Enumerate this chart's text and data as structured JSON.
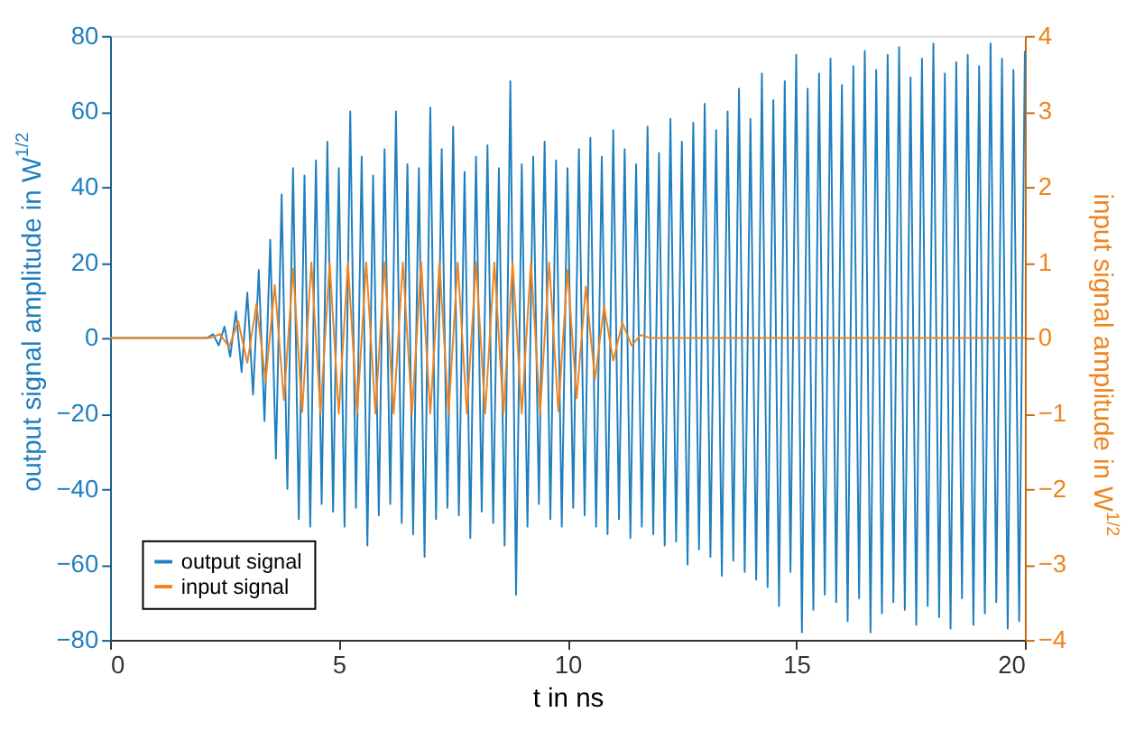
{
  "chart_data": {
    "type": "line",
    "xlabel": "t in ns",
    "ylabel": "output signal amplitude in W$^{1/2}$",
    "y2label": "input signal amplitude in W$^{1/2}$",
    "xlim": [
      0,
      20
    ],
    "xticks": [
      0,
      5,
      10,
      15,
      20
    ],
    "ylim": [
      -80,
      80
    ],
    "yticks": [
      -80,
      -60,
      -40,
      -20,
      0,
      20,
      40,
      60,
      80
    ],
    "y2lim": [
      -4,
      4
    ],
    "y2ticks": [
      -4,
      -3,
      -2,
      -1,
      0,
      1,
      2,
      3,
      4
    ],
    "grid": false,
    "legend": "bottom left",
    "marker": "none",
    "line_style": "solid",
    "series": [
      {
        "name": "output signal",
        "color": "#1f7fbf",
        "x": [
          0,
          2,
          2.125,
          2.25,
          2.375,
          2.5,
          2.625,
          2.75,
          2.875,
          3,
          3.125,
          3.25,
          3.375,
          3.5,
          3.625,
          3.75,
          3.875,
          4,
          4.125,
          4.25,
          4.375,
          4.5,
          4.625,
          4.75,
          4.875,
          5,
          5.125,
          5.25,
          5.375,
          5.5,
          5.625,
          5.75,
          5.875,
          6,
          6.125,
          6.25,
          6.375,
          6.5,
          6.625,
          6.75,
          6.875,
          7,
          7.125,
          7.25,
          7.375,
          7.5,
          7.625,
          7.75,
          7.875,
          8,
          8.125,
          8.25,
          8.375,
          8.5,
          8.625,
          8.75,
          8.875,
          9,
          9.125,
          9.25,
          9.375,
          9.5,
          9.625,
          9.75,
          9.875,
          10,
          10.125,
          10.25,
          10.375,
          10.5,
          10.625,
          10.75,
          10.875,
          11,
          11.125,
          11.25,
          11.375,
          11.5,
          11.625,
          11.75,
          11.875,
          12,
          12.125,
          12.25,
          12.375,
          12.5,
          12.625,
          12.75,
          12.875,
          13,
          13.125,
          13.25,
          13.375,
          13.5,
          13.625,
          13.75,
          13.875,
          14,
          14.125,
          14.25,
          14.375,
          14.5,
          14.625,
          14.75,
          14.875,
          15,
          15.125,
          15.25,
          15.375,
          15.5,
          15.625,
          15.75,
          15.875,
          16,
          16.125,
          16.25,
          16.375,
          16.5,
          16.625,
          16.75,
          16.875,
          17,
          17.125,
          17.25,
          17.375,
          17.5,
          17.625,
          17.75,
          17.875,
          18,
          18.125,
          18.25,
          18.375,
          18.5,
          18.625,
          18.75,
          18.875,
          19,
          19.125,
          19.25,
          19.375,
          19.5,
          19.625,
          19.75,
          19.875,
          20
        ],
        "values": [
          0,
          0,
          0,
          1,
          -2,
          3,
          -5,
          7,
          -9,
          12,
          -15,
          18,
          -22,
          26,
          -32,
          38,
          -40,
          45,
          -48,
          43,
          -50,
          47,
          -44,
          52,
          -46,
          45,
          -50,
          60,
          -45,
          48,
          -55,
          43,
          -47,
          50,
          -44,
          60,
          -49,
          46,
          -52,
          45,
          -58,
          61,
          -48,
          50,
          -45,
          56,
          -47,
          44,
          -53,
          48,
          -46,
          51,
          -49,
          45,
          -55,
          68,
          -68,
          46,
          -50,
          48,
          -44,
          52,
          -48,
          47,
          -50,
          45,
          -45,
          50,
          -47,
          53,
          -50,
          48,
          -52,
          55,
          -48,
          50,
          -53,
          46,
          -50,
          56,
          -52,
          49,
          -55,
          58,
          -54,
          52,
          -60,
          57,
          -56,
          62,
          -58,
          55,
          -63,
          60,
          -59,
          66,
          -62,
          58,
          -64,
          70,
          -66,
          63,
          -71,
          68,
          -62,
          75,
          -78,
          66,
          -72,
          70,
          -68,
          74,
          -70,
          67,
          -75,
          72,
          -69,
          76,
          -78,
          71,
          -73,
          75,
          -70,
          77,
          -72,
          69,
          -76,
          74,
          -71,
          78,
          -74,
          70,
          -77,
          73,
          -69,
          75,
          -76,
          72,
          -73,
          78,
          -70,
          74,
          -77,
          71,
          -75,
          76
        ]
      },
      {
        "name": "input signal",
        "color": "#ee8420",
        "axis": "y2",
        "x": [
          0,
          2.2,
          2.4,
          2.6,
          2.8,
          3,
          3.2,
          3.4,
          3.6,
          3.8,
          4,
          4.2,
          4.4,
          4.6,
          4.8,
          5,
          5.2,
          5.4,
          5.6,
          5.8,
          6,
          6.2,
          6.4,
          6.6,
          6.8,
          7,
          7.2,
          7.4,
          7.6,
          7.8,
          8,
          8.2,
          8.4,
          8.6,
          8.8,
          9,
          9.2,
          9.4,
          9.6,
          9.8,
          10,
          10.2,
          10.4,
          10.6,
          10.8,
          11,
          11.2,
          11.4,
          11.6,
          11.8,
          20
        ],
        "values": [
          0,
          0,
          0.05,
          -0.12,
          0.22,
          -0.33,
          0.45,
          -0.57,
          0.7,
          -0.82,
          0.92,
          -0.98,
          1,
          -1,
          1,
          -1,
          1,
          -1,
          1,
          -1,
          1,
          -1,
          1,
          -1,
          1,
          -1,
          1,
          -1,
          1,
          -1,
          1,
          -1,
          1,
          -1,
          1,
          -1,
          1,
          -1,
          1,
          -0.97,
          0.9,
          -0.8,
          0.68,
          -0.55,
          0.42,
          -0.3,
          0.2,
          -0.1,
          0.04,
          0,
          0
        ]
      }
    ]
  }
}
